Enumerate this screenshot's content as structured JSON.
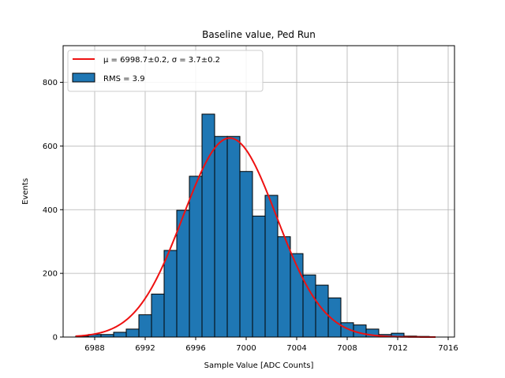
{
  "chart_data": {
    "type": "bar",
    "title": "Baseline value, Ped Run",
    "xlabel": "Sample Value [ADC Counts]",
    "ylabel": "Events",
    "xlim": [
      6985.5,
      7016.5
    ],
    "ylim": [
      0,
      915
    ],
    "grid": true,
    "legend_placement": "top-left",
    "x_ticks": [
      6988,
      6992,
      6996,
      7000,
      7004,
      7008,
      7012,
      7016
    ],
    "y_ticks": [
      0,
      200,
      400,
      600,
      800
    ],
    "bin_width": 1,
    "bins": [
      {
        "x": 6987,
        "value": 3
      },
      {
        "x": 6988,
        "value": 8
      },
      {
        "x": 6989,
        "value": 8
      },
      {
        "x": 6990,
        "value": 15
      },
      {
        "x": 6991,
        "value": 25
      },
      {
        "x": 6992,
        "value": 70
      },
      {
        "x": 6993,
        "value": 135
      },
      {
        "x": 6994,
        "value": 272
      },
      {
        "x": 6995,
        "value": 398
      },
      {
        "x": 6996,
        "value": 505
      },
      {
        "x": 6997,
        "value": 700
      },
      {
        "x": 6998,
        "value": 630
      },
      {
        "x": 6999,
        "value": 630
      },
      {
        "x": 7000,
        "value": 520
      },
      {
        "x": 7001,
        "value": 380
      },
      {
        "x": 7002,
        "value": 445
      },
      {
        "x": 7003,
        "value": 315
      },
      {
        "x": 7004,
        "value": 262
      },
      {
        "x": 7005,
        "value": 195
      },
      {
        "x": 7006,
        "value": 163
      },
      {
        "x": 7007,
        "value": 123
      },
      {
        "x": 7008,
        "value": 45
      },
      {
        "x": 7009,
        "value": 38
      },
      {
        "x": 7010,
        "value": 25
      },
      {
        "x": 7011,
        "value": 8
      },
      {
        "x": 7012,
        "value": 12
      },
      {
        "x": 7013,
        "value": 3
      },
      {
        "x": 7014,
        "value": 2
      }
    ],
    "fit": {
      "mu": 6998.7,
      "sigma": 3.7,
      "amplitude": 625,
      "x_range": [
        6986.5,
        7015
      ]
    },
    "series": [
      {
        "name": "μ = 6998.7±0.2, σ = 3.7±0.2",
        "kind": "line",
        "color": "#ee1111"
      },
      {
        "name": "RMS = 3.9",
        "kind": "bar",
        "color": "#1f77b4"
      }
    ],
    "colors": {
      "bar_fill": "#1f77b4",
      "bar_edge": "#000000",
      "fit_line": "#ee1111",
      "grid": "#b0b0b0"
    }
  }
}
